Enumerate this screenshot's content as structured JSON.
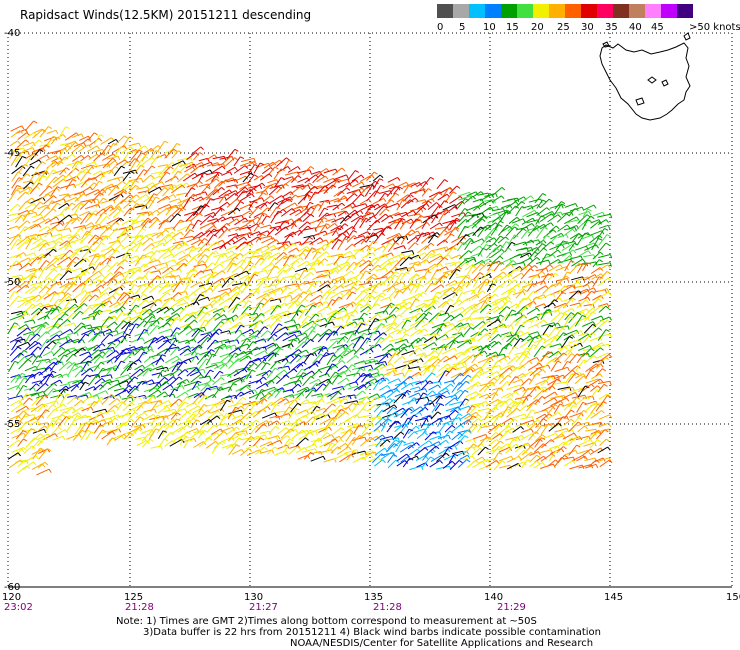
{
  "title": "Rapidsact Winds(12.5KM) 20151211 descending",
  "scale": {
    "labels": [
      "0",
      "5",
      "10",
      "15",
      "20",
      "25",
      "30",
      "35",
      "40",
      "45",
      ">50 knots"
    ],
    "colors": [
      "#505050",
      "#a8a8a8",
      "#00c0ff",
      "#0080ff",
      "#00a000",
      "#40e040",
      "#f0f000",
      "#ffb000",
      "#ff6000",
      "#e00000",
      "#ff0060",
      "#803020",
      "#c08060",
      "#ff80ff",
      "#c000ff",
      "#400080"
    ]
  },
  "axes": {
    "lat_labels": [
      "-40",
      "-45",
      "-50",
      "-55",
      "-60"
    ],
    "lon_labels": [
      "120",
      "125",
      "130",
      "135",
      "140",
      "145",
      "150"
    ],
    "times": [
      "23:02",
      "21:28",
      "21:27",
      "21:28",
      "21:29"
    ]
  },
  "notes": [
    "Note: 1) Times are GMT 2)Times along bottom correspond to measurement at ~50S",
    "3)Data buffer is 22 hrs from 20151211 4) Black wind barbs indicate possible contamination",
    "NOAA/NESDIS/Center for Satellite Applications and Research"
  ]
}
